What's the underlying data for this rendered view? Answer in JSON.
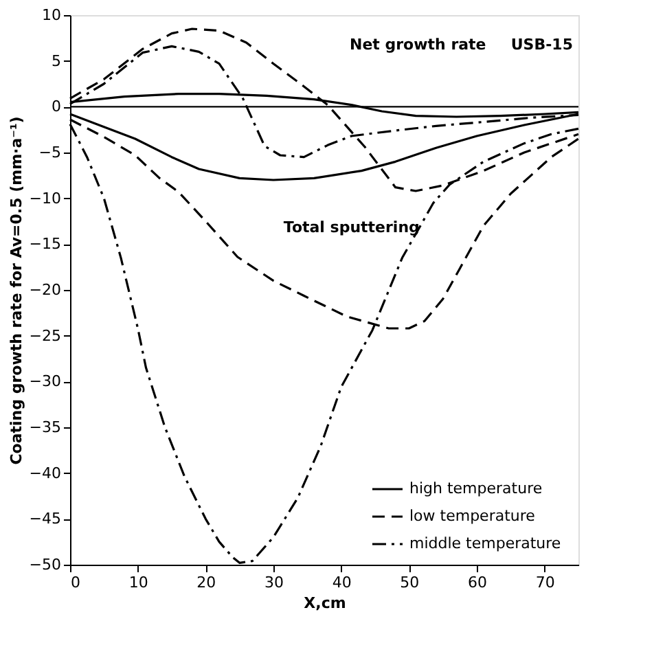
{
  "chart_data": {
    "type": "line",
    "xlabel": "X,cm",
    "ylabel": "Coating growth rate for Av=0.5 (mm·a⁻¹)",
    "xlim": [
      0,
      75
    ],
    "xticks": [
      0,
      10,
      20,
      30,
      40,
      50,
      60,
      70
    ],
    "ylim": [
      -50,
      10
    ],
    "yticks": [
      10,
      5,
      0,
      -5,
      -10,
      -15,
      -20,
      -25,
      -30,
      -35,
      -40,
      -45,
      -50
    ],
    "grid": false,
    "legend": "bottom right",
    "marker": "none",
    "annotations": [
      "Net growth rate",
      "USB-15",
      "Total sputtering"
    ],
    "ref_lines": [
      {
        "axis": "y",
        "value": 0,
        "color": "#000000",
        "line_style": "solid"
      }
    ],
    "series": [
      {
        "name": "high temperature",
        "color": "#000000",
        "line_style": "solid",
        "x": [
          0,
          8,
          16,
          22,
          29,
          36,
          41.5,
          46,
          51,
          57,
          63.5,
          70,
          75
        ],
        "values": [
          0.5,
          1.1,
          1.4,
          1.4,
          1.2,
          0.8,
          0.2,
          -0.5,
          -1,
          -1.1,
          -1,
          -0.8,
          -0.6
        ]
      },
      {
        "name": "low temperature",
        "color": "#000000",
        "line_style": "dashed",
        "x": [
          0,
          5,
          10.7,
          15,
          18,
          22,
          26,
          30,
          34,
          38,
          43.5,
          48,
          51,
          55,
          61,
          67,
          75
        ],
        "values": [
          0.9,
          3,
          6.3,
          8,
          8.5,
          8.3,
          7,
          4.7,
          2.5,
          0.2,
          -4.4,
          -8.8,
          -9.2,
          -8.6,
          -7,
          -5,
          -3
        ]
      },
      {
        "name": "middle temperature",
        "color": "#000000",
        "line_style": "dashdot",
        "x": [
          0,
          5,
          10.7,
          15,
          19,
          22,
          25.5,
          28.7,
          31,
          34.5,
          38,
          41.5,
          48,
          54,
          62,
          68,
          75
        ],
        "values": [
          0.3,
          2.5,
          5.9,
          6.6,
          6,
          4.7,
          0.9,
          -4.3,
          -5.3,
          -5.5,
          -4.2,
          -3.2,
          -2.6,
          -2.1,
          -1.6,
          -1.2,
          -0.9
        ]
      },
      {
        "color": "#000000",
        "line_style": "solid",
        "x": [
          0,
          5,
          9.6,
          15,
          19,
          25,
          30,
          36,
          43,
          48,
          54,
          60,
          67,
          75
        ],
        "values": [
          -0.8,
          -2.2,
          -3.5,
          -5.5,
          -6.8,
          -7.8,
          -8,
          -7.8,
          -7,
          -6,
          -4.5,
          -3.2,
          -2,
          -0.8
        ]
      },
      {
        "color": "#000000",
        "line_style": "dashed",
        "x": [
          0,
          5,
          9.6,
          13.2,
          16,
          20,
          24.7,
          30,
          34.4,
          40.8,
          47,
          50,
          52.3,
          55,
          57.4,
          61,
          65,
          68,
          71,
          75
        ],
        "values": [
          -1.4,
          -3.3,
          -5.3,
          -7.8,
          -9.3,
          -12.5,
          -16.4,
          -19,
          -20.6,
          -22.9,
          -24.2,
          -24.2,
          -23.4,
          -21,
          -17.8,
          -13,
          -9.5,
          -7.5,
          -5.5,
          -3.5
        ]
      },
      {
        "color": "#000000",
        "line_style": "dashdot",
        "x": [
          0,
          2.5,
          5,
          7.5,
          10,
          11.2,
          14,
          16.9,
          20,
          22,
          24,
          25,
          26.9,
          30,
          33.6,
          37,
          40,
          44.6,
          49,
          53.6,
          56,
          61,
          67,
          71,
          75
        ],
        "values": [
          -1.9,
          -5.5,
          -10,
          -16.5,
          -24.2,
          -28.5,
          -35,
          -40.4,
          -45,
          -47.5,
          -49.2,
          -49.8,
          -49.6,
          -47,
          -42.7,
          -37,
          -30.6,
          -24.4,
          -16.5,
          -10.5,
          -8.5,
          -6,
          -4,
          -3,
          -2.4
        ]
      }
    ]
  }
}
